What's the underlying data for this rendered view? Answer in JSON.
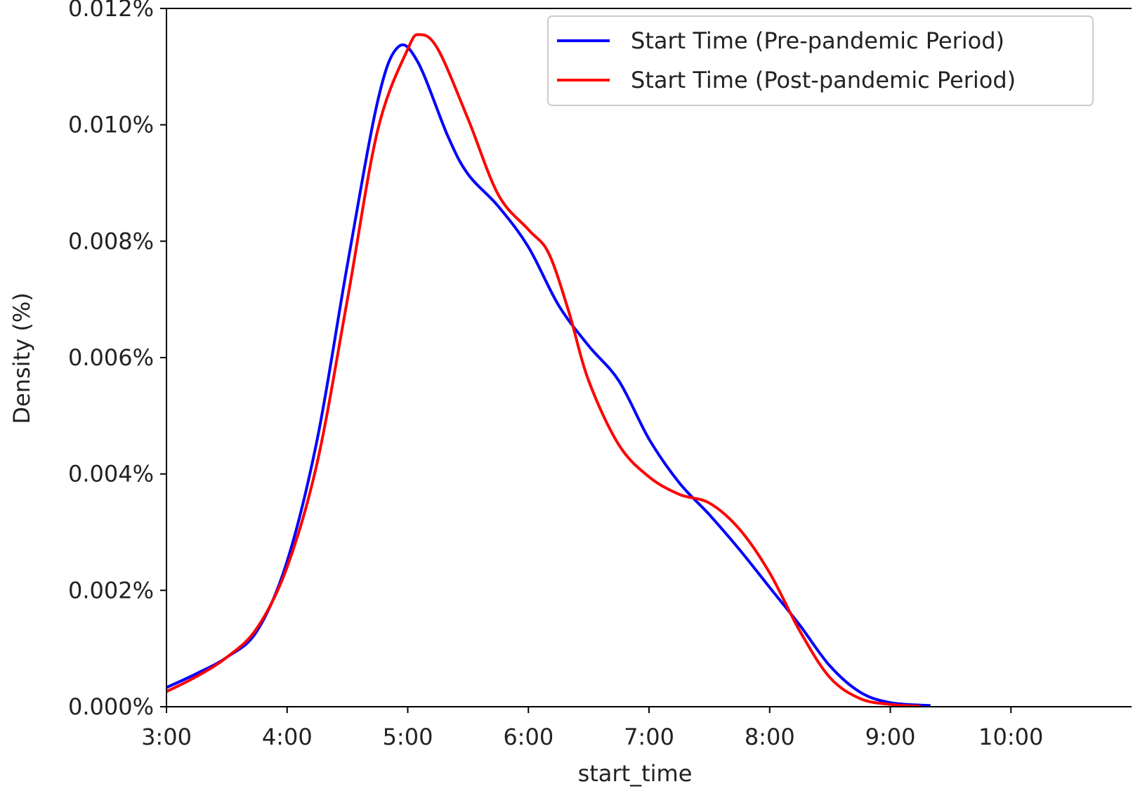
{
  "chart_data": {
    "type": "line",
    "xlabel": "start_time",
    "ylabel": "Density (%)",
    "xlim": [
      "3:00",
      "11:00"
    ],
    "ylim": [
      0,
      0.012
    ],
    "x_ticks": [
      "3:00",
      "4:00",
      "5:00",
      "6:00",
      "7:00",
      "8:00",
      "9:00",
      "10:00"
    ],
    "y_ticks": [
      "0.000%",
      "0.002%",
      "0.004%",
      "0.006%",
      "0.008%",
      "0.010%",
      "0.012%"
    ],
    "grid": false,
    "legend_position": "top-right",
    "series": [
      {
        "name": "Start Time (Pre-pandemic Period)",
        "color": "#0000ff",
        "points": [
          [
            "3:00",
            0.00033
          ],
          [
            "3:15",
            0.00057
          ],
          [
            "3:30",
            0.00085
          ],
          [
            "3:45",
            0.0013
          ],
          [
            "4:00",
            0.0025
          ],
          [
            "4:15",
            0.0046
          ],
          [
            "4:30",
            0.0076
          ],
          [
            "4:45",
            0.0104
          ],
          [
            "4:55",
            0.01133
          ],
          [
            "5:05",
            0.01108
          ],
          [
            "5:20",
            0.0098
          ],
          [
            "5:30",
            0.00915
          ],
          [
            "5:45",
            0.0086
          ],
          [
            "6:00",
            0.0079
          ],
          [
            "6:15",
            0.0069
          ],
          [
            "6:30",
            0.0062
          ],
          [
            "6:45",
            0.0056
          ],
          [
            "7:00",
            0.0046
          ],
          [
            "7:15",
            0.00385
          ],
          [
            "7:30",
            0.0033
          ],
          [
            "7:45",
            0.0027
          ],
          [
            "8:00",
            0.00205
          ],
          [
            "8:15",
            0.0014
          ],
          [
            "8:30",
            0.0007
          ],
          [
            "8:45",
            0.00025
          ],
          [
            "9:00",
            7e-05
          ],
          [
            "9:20",
            2e-05
          ]
        ]
      },
      {
        "name": "Start Time (Post-pandemic Period)",
        "color": "#ff0000",
        "points": [
          [
            "3:00",
            0.00026
          ],
          [
            "3:15",
            0.00052
          ],
          [
            "3:30",
            0.00085
          ],
          [
            "3:45",
            0.00135
          ],
          [
            "4:00",
            0.0024
          ],
          [
            "4:15",
            0.0042
          ],
          [
            "4:30",
            0.007
          ],
          [
            "4:45",
            0.0099
          ],
          [
            "5:00",
            0.0113
          ],
          [
            "5:06",
            0.01155
          ],
          [
            "5:15",
            0.0113
          ],
          [
            "5:30",
            0.0101
          ],
          [
            "5:45",
            0.0088
          ],
          [
            "6:00",
            0.0082
          ],
          [
            "6:10",
            0.0078
          ],
          [
            "6:20",
            0.0068
          ],
          [
            "6:30",
            0.0056
          ],
          [
            "6:45",
            0.0045
          ],
          [
            "7:00",
            0.00395
          ],
          [
            "7:15",
            0.00365
          ],
          [
            "7:30",
            0.0035
          ],
          [
            "7:45",
            0.00305
          ],
          [
            "8:00",
            0.0023
          ],
          [
            "8:15",
            0.0013
          ],
          [
            "8:30",
            0.0005
          ],
          [
            "8:45",
            0.00014
          ],
          [
            "9:00",
            4e-05
          ],
          [
            "9:15",
            1e-05
          ]
        ]
      }
    ]
  }
}
